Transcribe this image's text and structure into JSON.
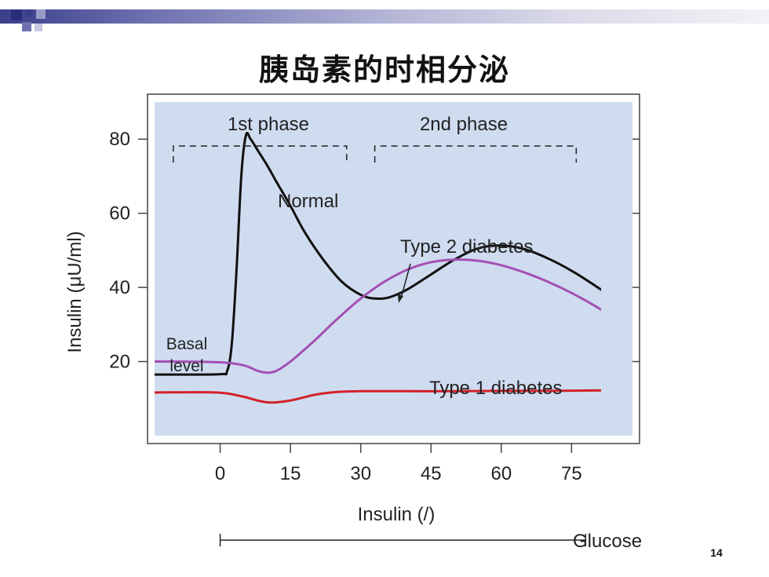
{
  "slide": {
    "title": "胰岛素的时相分泌",
    "page_number": "14"
  },
  "chart_data": {
    "type": "line",
    "xlabel": "Insulin (/)",
    "ylabel": "Insulin (μU/ml)",
    "xlim": [
      -14,
      88
    ],
    "ylim": [
      0,
      90
    ],
    "x_ticks": [
      0,
      15,
      30,
      45,
      60,
      75
    ],
    "y_ticks": [
      20,
      40,
      60,
      80
    ],
    "grid": false,
    "colors": {
      "plot_background": "#cfdcf0",
      "frame": "#444444",
      "Normal": "#111111",
      "Type 2 diabetes": "#a450b4",
      "Type 1 diabetes": "#d3212a"
    },
    "series": [
      {
        "name": "Normal",
        "x": [
          -20,
          -10,
          0,
          1.5,
          2.5,
          3.5,
          4.5,
          5.5,
          6.5,
          8,
          10,
          12,
          15,
          18,
          22,
          26,
          30,
          33,
          36,
          40,
          45,
          50,
          55,
          60,
          65,
          70,
          75,
          80,
          85,
          89
        ],
        "y": [
          16.5,
          16.5,
          16.6,
          17.5,
          25,
          45,
          70,
          81,
          80,
          77,
          73,
          68.5,
          62,
          55,
          47.5,
          41.5,
          38,
          37,
          37.3,
          39.5,
          43.5,
          47.5,
          50.5,
          51.3,
          50.3,
          47.8,
          44.5,
          40.5,
          36,
          31
        ]
      },
      {
        "name": "Type 2 diabetes",
        "x": [
          -20,
          -10,
          0,
          5,
          8,
          10,
          12,
          15,
          20,
          25,
          30,
          35,
          40,
          45,
          50,
          55,
          60,
          65,
          70,
          75,
          80,
          85,
          89
        ],
        "y": [
          20,
          20,
          19.8,
          19,
          17.5,
          17,
          17.5,
          20,
          25.5,
          31.5,
          37,
          41.5,
          44.8,
          46.8,
          47.5,
          47.2,
          46,
          44,
          41.5,
          38.5,
          35,
          31,
          27
        ]
      },
      {
        "name": "Type 1 diabetes",
        "x": [
          -20,
          -10,
          0,
          5,
          10,
          15,
          20,
          25,
          30,
          40,
          50,
          60,
          70,
          80,
          89
        ],
        "y": [
          11.5,
          11.7,
          11.6,
          10.5,
          9,
          9.5,
          11,
          11.8,
          12,
          12,
          12,
          12.1,
          12.1,
          12.2,
          12.2
        ]
      }
    ],
    "annotations": {
      "normal_label": "Normal",
      "type2_label": "Type 2 diabetes",
      "type1_label": "Type 1 diabetes",
      "basal_line1": "Basal",
      "basal_line2": "level",
      "phase1_label": "1st phase",
      "phase2_label": "2nd phase",
      "glucose_label": "Glucose"
    },
    "phases": [
      {
        "name": "1st phase",
        "start": -10,
        "end": 27
      },
      {
        "name": "2nd phase",
        "start": 33,
        "end": 76
      }
    ],
    "glucose_interval": [
      0,
      78
    ]
  }
}
